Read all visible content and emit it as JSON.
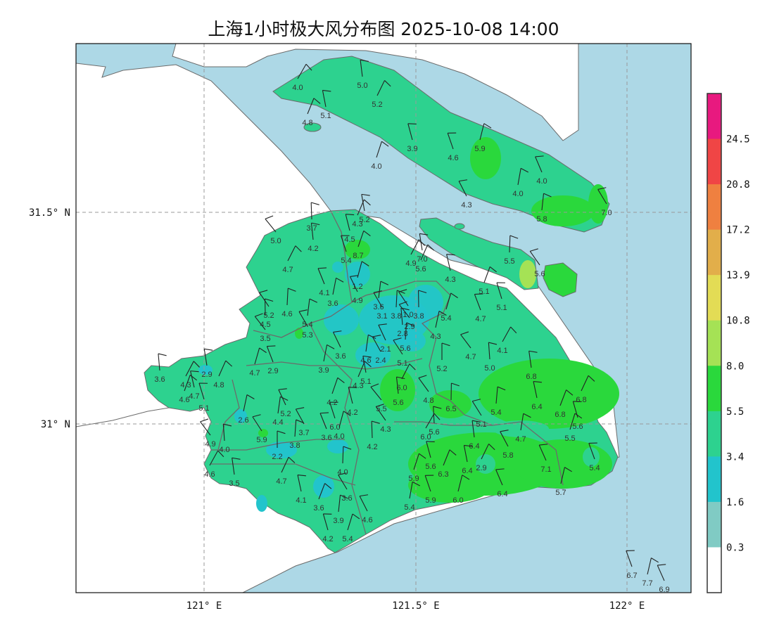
{
  "title": "上海1小时极大风分布图 2025-10-08 14:00",
  "axes": {
    "x_ticks": [
      "121° E",
      "121.5° E",
      "122° E"
    ],
    "y_ticks": [
      "31.5° N",
      "31° N"
    ],
    "gridlines": true
  },
  "colors": {
    "water": "#add8e6",
    "land_outside": "#ffffff",
    "boundary": "#6b6b6b"
  },
  "colorbar": {
    "labels": [
      "24.5",
      "20.8",
      "17.2",
      "13.9",
      "10.8",
      "8.0",
      "5.5",
      "3.4",
      "1.6",
      "0.3"
    ],
    "colors": [
      "#e8197f",
      "#f04545",
      "#ef8040",
      "#e2ae4a",
      "#e3dc55",
      "#a5e255",
      "#2ad83c",
      "#2dd28f",
      "#22c4cc",
      "#80cbc4",
      "#ffffff"
    ]
  },
  "stations": [
    "4.0",
    "5.0",
    "5.2",
    "5.1",
    "4.8",
    "3.9",
    "4.0",
    "4.6",
    "5.9",
    "4.0",
    "4.0",
    "4.3",
    "5.8",
    "7.0",
    "5.5",
    "5.6",
    "3.7",
    "5.0",
    "4.2",
    "4.7",
    "5.2",
    "4.3",
    "4.5",
    "8.7",
    "5.4",
    "1.2",
    "4.1",
    "3.6",
    "4.9",
    "3.6",
    "3.1",
    "3.8",
    "1.0",
    "3.8",
    "2.9",
    "2.8",
    "4.9",
    "7.0",
    "5.6",
    "4.3",
    "5.1",
    "5.1",
    "5.4",
    "4.7",
    "4.3",
    "2.1",
    "4.6",
    "2.4",
    "5.6",
    "5.1",
    "5.2",
    "4.7",
    "5.0",
    "4.1",
    "6.8",
    "6.8",
    "6.4",
    "6.8",
    "5.6",
    "5.5",
    "5.4",
    "5.7",
    "7.1",
    "4.7",
    "5.8",
    "5.4",
    "5.1",
    "6.5",
    "4.8",
    "5.6",
    "6.0",
    "6.4",
    "2.9",
    "6.4",
    "6.3",
    "5.6",
    "5.9",
    "5.9",
    "6.0",
    "6.4",
    "5.4",
    "4.6",
    "3.9",
    "3.6",
    "4.0",
    "4.3",
    "4.2",
    "5.5",
    "5.6",
    "6.0",
    "5.1",
    "4.3",
    "4.2",
    "4.2",
    "6.0",
    "4.0",
    "3.6",
    "3.9",
    "3.6",
    "5.4",
    "5.3",
    "4.6",
    "5.2",
    "4.5",
    "3.5",
    "3.6",
    "4.3",
    "2.9",
    "4.8",
    "4.7",
    "4.6",
    "5.1",
    "4.7",
    "2.9",
    "2.6",
    "5.2",
    "4.4",
    "3.7",
    "3.8",
    "5.9",
    "2.2",
    "4.9",
    "4.0",
    "4.6",
    "3.5",
    "4.7",
    "4.1",
    "3.6",
    "4.2",
    "5.4",
    "6.7",
    "7.7",
    "6.9"
  ]
}
